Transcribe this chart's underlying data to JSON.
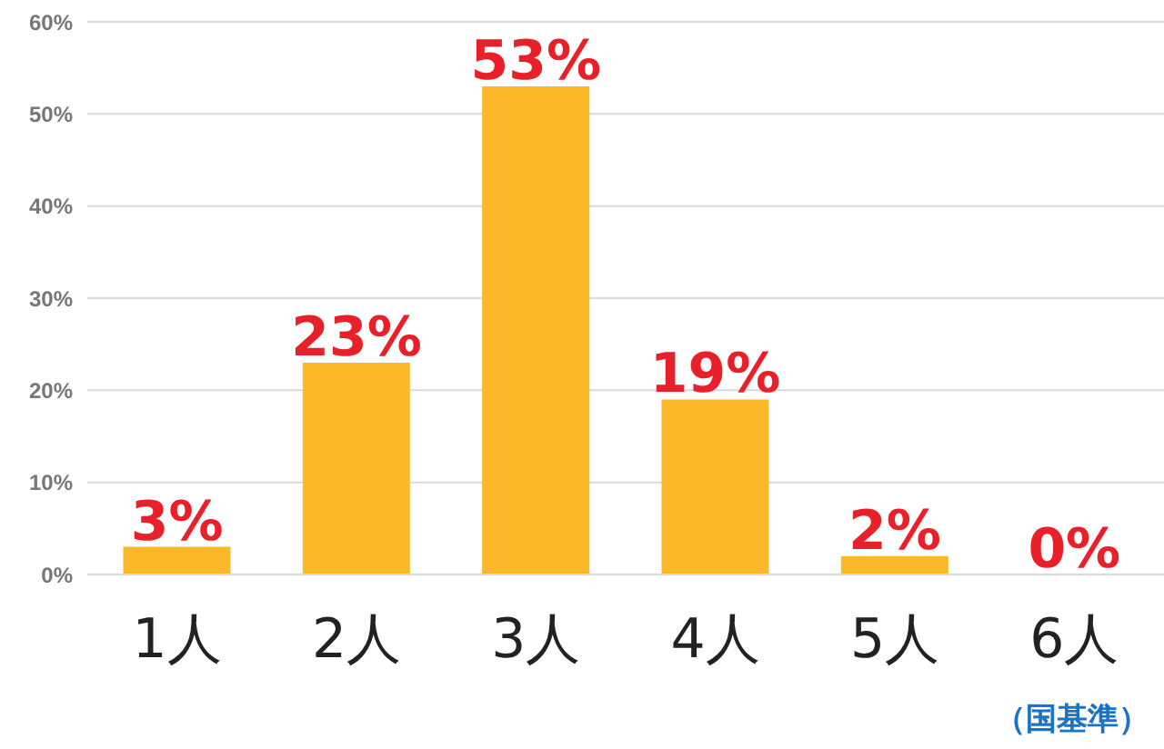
{
  "chart_data": {
    "type": "bar",
    "categories": [
      "1人",
      "2人",
      "3人",
      "4人",
      "5人",
      "6人"
    ],
    "values": [
      3,
      23,
      53,
      19,
      2,
      0
    ],
    "color": "#fbb829",
    "value_labels": [
      "3%",
      "23%",
      "53%",
      "19%",
      "2%",
      "0%"
    ],
    "ylim": [
      0,
      60
    ],
    "yticks": [
      {
        "value": 0,
        "label": "0%"
      },
      {
        "value": 10,
        "label": "10%"
      },
      {
        "value": 20,
        "label": "20%"
      },
      {
        "value": 30,
        "label": "30%"
      },
      {
        "value": 40,
        "label": "40%"
      },
      {
        "value": 50,
        "label": "50%"
      },
      {
        "value": 60,
        "label": "60%"
      }
    ],
    "grid": "y",
    "legend": false,
    "annotations": [
      "（国基準）"
    ]
  }
}
